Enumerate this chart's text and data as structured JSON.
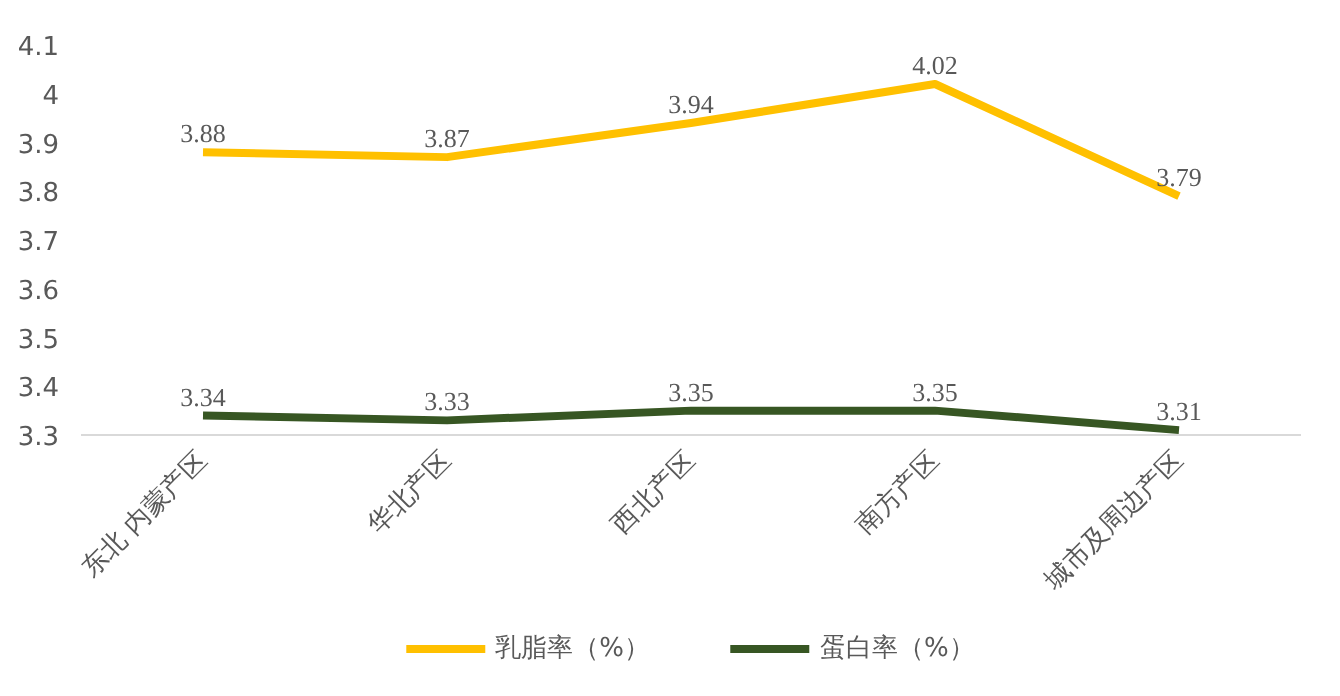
{
  "chart_data": {
    "type": "line",
    "categories": [
      "东北 内蒙产区",
      "华北产区",
      "西北产区",
      "南方产区",
      "城市及周边产区"
    ],
    "series": [
      {
        "name": "乳脂率（%）",
        "color": "#ffc000",
        "values": [
          3.88,
          3.87,
          3.94,
          4.02,
          3.79
        ]
      },
      {
        "name": "蛋白率（%）",
        "color": "#375623",
        "values": [
          3.34,
          3.33,
          3.35,
          3.35,
          3.31
        ]
      }
    ],
    "ylim": [
      3.3,
      4.1
    ],
    "yticks": [
      3.3,
      3.4,
      3.5,
      3.6,
      3.7,
      3.8,
      3.9,
      4,
      4.1
    ],
    "data_labels": true,
    "legend": "bottom",
    "grid": false,
    "marker": "none",
    "line_style": "solid"
  }
}
